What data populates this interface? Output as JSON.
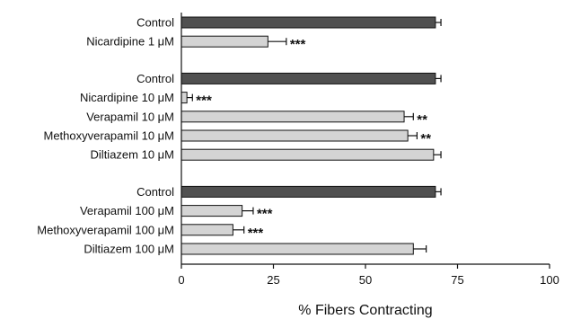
{
  "chart_data": {
    "type": "bar",
    "orientation": "horizontal",
    "title": "",
    "xlabel": "% Fibers Contracting",
    "ylabel": "",
    "xlim": [
      0,
      100
    ],
    "xticks": [
      0,
      25,
      50,
      75,
      100
    ],
    "grid": false,
    "legend": "none",
    "colors": {
      "control": "#505050",
      "drug": "#d4d4d4",
      "outline": "#111111"
    },
    "groups": [
      {
        "bars": [
          {
            "label": "Control",
            "value": 69,
            "error": 1.5,
            "kind": "control",
            "sig": ""
          },
          {
            "label": "Nicardipine 1 μM",
            "value": 23.5,
            "error": 5,
            "kind": "drug",
            "sig": "***"
          }
        ]
      },
      {
        "bars": [
          {
            "label": "Control",
            "value": 69,
            "error": 1.5,
            "kind": "control",
            "sig": ""
          },
          {
            "label": "Nicardipine 10 μM",
            "value": 1.5,
            "error": 1.5,
            "kind": "drug",
            "sig": "***"
          },
          {
            "label": "Verapamil 10 μM",
            "value": 60.5,
            "error": 2.5,
            "kind": "drug",
            "sig": "**"
          },
          {
            "label": "Methoxyverapamil 10 μM",
            "value": 61.5,
            "error": 2.5,
            "kind": "drug",
            "sig": "**"
          },
          {
            "label": "Diltiazem 10 μM",
            "value": 68.5,
            "error": 2,
            "kind": "drug",
            "sig": ""
          }
        ]
      },
      {
        "bars": [
          {
            "label": "Control",
            "value": 69,
            "error": 1.5,
            "kind": "control",
            "sig": ""
          },
          {
            "label": "Verapamil 100 μM",
            "value": 16.5,
            "error": 3,
            "kind": "drug",
            "sig": "***"
          },
          {
            "label": "Methoxyverapamil 100 μM",
            "value": 14,
            "error": 3,
            "kind": "drug",
            "sig": "***"
          },
          {
            "label": "Diltiazem 100 μM",
            "value": 63,
            "error": 3.5,
            "kind": "drug",
            "sig": ""
          }
        ]
      }
    ]
  }
}
